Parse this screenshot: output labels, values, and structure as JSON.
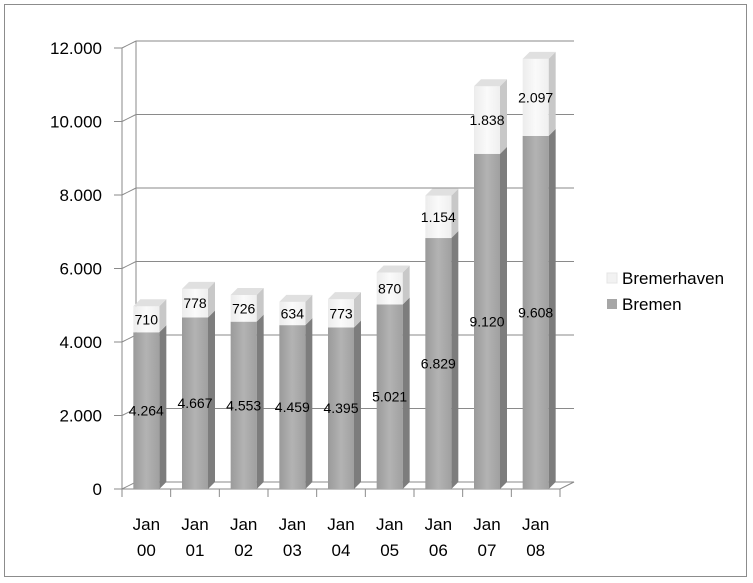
{
  "chart_data": {
    "type": "bar",
    "stacked": true,
    "style": "3d",
    "categories": [
      [
        "Jan",
        "00"
      ],
      [
        "Jan",
        "01"
      ],
      [
        "Jan",
        "02"
      ],
      [
        "Jan",
        "03"
      ],
      [
        "Jan",
        "04"
      ],
      [
        "Jan",
        "05"
      ],
      [
        "Jan",
        "06"
      ],
      [
        "Jan",
        "07"
      ],
      [
        "Jan",
        "08"
      ]
    ],
    "series": [
      {
        "name": "Bremen",
        "values": [
          4264,
          4667,
          4553,
          4459,
          4395,
          5021,
          6829,
          9120,
          9608
        ],
        "labels": [
          "4.264",
          "4.667",
          "4.553",
          "4.459",
          "4.395",
          "5.021",
          "6.829",
          "9.120",
          "9.608"
        ],
        "color": "#a6a6a6"
      },
      {
        "name": "Bremerhaven",
        "values": [
          710,
          778,
          726,
          634,
          773,
          870,
          1154,
          1838,
          2097
        ],
        "labels": [
          "710",
          "778",
          "726",
          "634",
          "773",
          "870",
          "1.154",
          "1.838",
          "2.097"
        ],
        "color": "#f2f2f2"
      }
    ],
    "ylim": [
      0,
      12000
    ],
    "yticks": [
      0,
      2000,
      4000,
      6000,
      8000,
      10000,
      12000
    ],
    "ytick_labels": [
      "0",
      "2.000",
      "4.000",
      "6.000",
      "8.000",
      "10.000",
      "12.000"
    ],
    "grid": true,
    "legend_position": "right"
  }
}
